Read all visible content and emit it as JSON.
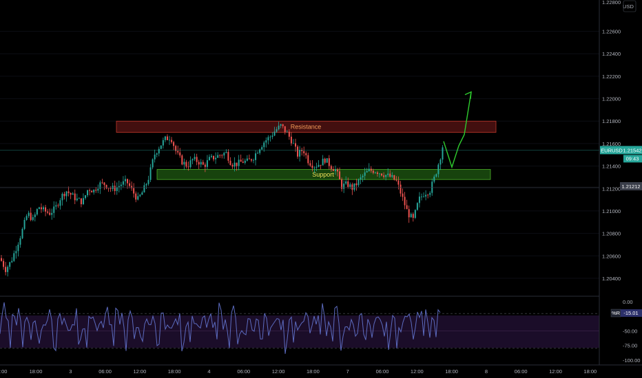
{
  "symbol": "EURUSD",
  "currency": "USD",
  "colors": {
    "background": "#000000",
    "up": "#26a69a",
    "down": "#ef5350",
    "resistance_fill": "#5a1414",
    "resistance_border": "#c0392b",
    "resistance_text": "#f39c5a",
    "support_fill": "#1f5a12",
    "support_border": "#4caf2a",
    "support_text": "#f1e05a",
    "projection": "#2ecc2e",
    "wr_line": "#5c6bc0",
    "wr_band": "#1b0d29",
    "price_badge": "#26a69a",
    "prev_close_badge": "#3a3e4a"
  },
  "chart_data": [
    {
      "type": "candlestick",
      "symbol": "EURUSD",
      "y_axis_ticks": [
        "1.22600",
        "1.22400",
        "1.22200",
        "1.22000",
        "1.21800",
        "1.21600",
        "1.21400",
        "1.21200",
        "1.21000",
        "1.20800",
        "1.20600",
        "1.20400"
      ],
      "y_axis_top_tick": "1.22800",
      "ylim": [
        1.2032,
        1.2283
      ],
      "x_axis_ticks": [
        "18:00",
        "3",
        "06:00",
        "12:00",
        "18:00",
        "4",
        "06:00",
        "12:00",
        "18:00",
        "7",
        "06:00",
        "12:00",
        "18:00",
        "8",
        "06:00",
        "12:00",
        "18:00"
      ],
      "x_axis_first_partial": ":00",
      "current_price": {
        "label": "EURUSD",
        "value": "1.21542",
        "countdown": "09:43"
      },
      "previous_close": {
        "value": "1.21212"
      },
      "zones": [
        {
          "name": "Resistance",
          "from": 1.217,
          "to": 1.218
        },
        {
          "name": "Support",
          "from": 1.2128,
          "to": 1.2137
        }
      ],
      "price_path": [
        [
          0,
          1.2058
        ],
        [
          8,
          1.2048
        ],
        [
          16,
          1.2055
        ],
        [
          24,
          1.2068
        ],
        [
          32,
          1.2082
        ],
        [
          40,
          1.2098
        ],
        [
          48,
          1.2092
        ],
        [
          56,
          1.2104
        ],
        [
          64,
          1.21
        ],
        [
          72,
          1.2098
        ],
        [
          80,
          1.2102
        ],
        [
          88,
          1.2112
        ],
        [
          96,
          1.2118
        ],
        [
          104,
          1.2114
        ],
        [
          112,
          1.211
        ],
        [
          120,
          1.2108
        ],
        [
          128,
          1.212
        ],
        [
          136,
          1.2118
        ],
        [
          144,
          1.2124
        ],
        [
          152,
          1.2124
        ],
        [
          160,
          1.212
        ],
        [
          168,
          1.212
        ],
        [
          176,
          1.2124
        ],
        [
          184,
          1.2126
        ],
        [
          192,
          1.2118
        ],
        [
          200,
          1.211
        ],
        [
          208,
          1.2118
        ],
        [
          216,
          1.213
        ],
        [
          224,
          1.215
        ],
        [
          232,
          1.2158
        ],
        [
          240,
          1.2164
        ],
        [
          248,
          1.2166
        ],
        [
          256,
          1.2152
        ],
        [
          264,
          1.2144
        ],
        [
          272,
          1.214
        ],
        [
          280,
          1.2146
        ],
        [
          288,
          1.2144
        ],
        [
          296,
          1.214
        ],
        [
          304,
          1.2146
        ],
        [
          312,
          1.2148
        ],
        [
          320,
          1.215
        ],
        [
          328,
          1.2152
        ],
        [
          336,
          1.2142
        ],
        [
          344,
          1.2142
        ],
        [
          352,
          1.2144
        ],
        [
          360,
          1.2144
        ],
        [
          368,
          1.2148
        ],
        [
          376,
          1.2156
        ],
        [
          384,
          1.2162
        ],
        [
          392,
          1.2166
        ],
        [
          400,
          1.2172
        ],
        [
          408,
          1.2176
        ],
        [
          416,
          1.217
        ],
        [
          424,
          1.2162
        ],
        [
          432,
          1.215
        ],
        [
          440,
          1.2155
        ],
        [
          448,
          1.2144
        ],
        [
          456,
          1.214
        ],
        [
          464,
          1.2142
        ],
        [
          472,
          1.2146
        ],
        [
          480,
          1.214
        ],
        [
          488,
          1.2136
        ],
        [
          496,
          1.2122
        ],
        [
          504,
          1.2124
        ],
        [
          512,
          1.212
        ],
        [
          520,
          1.2126
        ],
        [
          528,
          1.2132
        ],
        [
          536,
          1.2136
        ],
        [
          544,
          1.2136
        ],
        [
          552,
          1.2134
        ],
        [
          560,
          1.2132
        ],
        [
          568,
          1.213
        ],
        [
          576,
          1.2126
        ],
        [
          584,
          1.2112
        ],
        [
          592,
          1.2098
        ],
        [
          600,
          1.2092
        ],
        [
          608,
          1.211
        ],
        [
          616,
          1.2116
        ],
        [
          624,
          1.2118
        ],
        [
          632,
          1.2132
        ],
        [
          640,
          1.215
        ],
        [
          644,
          1.2162
        ]
      ],
      "projection_path": [
        [
          644,
          1.2162
        ],
        [
          656,
          1.2139
        ],
        [
          666,
          1.2158
        ],
        [
          674,
          1.2168
        ],
        [
          684,
          1.2206
        ]
      ]
    },
    {
      "type": "line",
      "name": "%R",
      "indicator_label": "%R",
      "current_value": "-15.01",
      "y_axis_ticks": [
        "0.00",
        "-25.00",
        "-50.00",
        "-75.00",
        "-100.00"
      ],
      "ylim": [
        -105,
        5
      ],
      "levels": [
        -20,
        -80
      ],
      "x_end": 640,
      "seed_values": [
        -60,
        -30,
        -10,
        -50,
        -25,
        -65,
        -15,
        -40,
        -80,
        -20,
        -35,
        -55,
        -30,
        -10,
        -45,
        -70,
        -25,
        -15,
        -50,
        -85,
        -35,
        -20,
        -60,
        -40,
        -15,
        -30,
        -75,
        -55,
        -20,
        -45,
        -90,
        -30,
        -10,
        -50,
        -25,
        -60,
        -35,
        -15,
        -70,
        -40,
        -20,
        -55,
        -95,
        -45,
        -25,
        -10,
        -30,
        -65,
        -20,
        -40
      ]
    }
  ]
}
